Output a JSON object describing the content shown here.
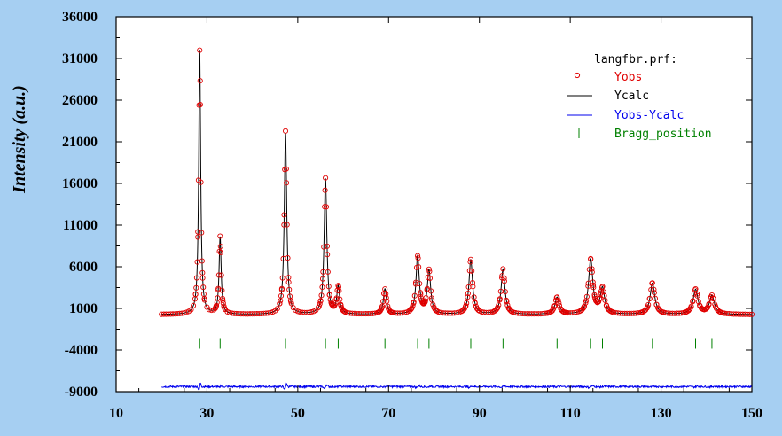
{
  "chart_data": {
    "type": "line",
    "title": "",
    "xlabel": "",
    "ylabel": "Intensity (a.u.)",
    "xlim": [
      10,
      150
    ],
    "ylim": [
      -9000,
      36000
    ],
    "x_ticks": [
      "10",
      "30",
      "50",
      "70",
      "90",
      "110",
      "130",
      "150"
    ],
    "y_ticks": [
      "-9000",
      "-4000",
      "1000",
      "6000",
      "11000",
      "16000",
      "21000",
      "26000",
      "31000",
      "36000"
    ],
    "legend_title": "langfbr.prf:",
    "legend_position": "top-right",
    "background": 250,
    "baseline_start": 20,
    "difference_offset": -8400,
    "series": [
      {
        "name": "Yobs",
        "color": "#e00000",
        "style": "circles"
      },
      {
        "name": "Ycalc",
        "color": "#000000",
        "style": "line"
      },
      {
        "name": "Yobs-Ycalc",
        "color": "#0000ee",
        "style": "line"
      },
      {
        "name": "Bragg_position",
        "color": "#008000",
        "style": "ticks"
      }
    ],
    "peaks": [
      {
        "x": 28.4,
        "y": 32000
      },
      {
        "x": 32.9,
        "y": 9500
      },
      {
        "x": 47.3,
        "y": 22000
      },
      {
        "x": 56.1,
        "y": 16500
      },
      {
        "x": 58.9,
        "y": 3500
      },
      {
        "x": 69.2,
        "y": 3300
      },
      {
        "x": 76.4,
        "y": 7200
      },
      {
        "x": 78.9,
        "y": 5500
      },
      {
        "x": 88.1,
        "y": 6800
      },
      {
        "x": 95.2,
        "y": 5700
      },
      {
        "x": 107.1,
        "y": 2300
      },
      {
        "x": 114.5,
        "y": 6800
      },
      {
        "x": 117.1,
        "y": 3300
      },
      {
        "x": 128.1,
        "y": 4000
      },
      {
        "x": 137.6,
        "y": 3200
      },
      {
        "x": 141.2,
        "y": 2500
      }
    ],
    "bragg_positions": [
      28.4,
      32.9,
      47.3,
      56.1,
      58.9,
      69.2,
      76.4,
      78.9,
      88.1,
      95.2,
      107.1,
      114.5,
      117.1,
      128.1,
      137.6,
      141.2
    ],
    "bragg_level": -3200
  }
}
